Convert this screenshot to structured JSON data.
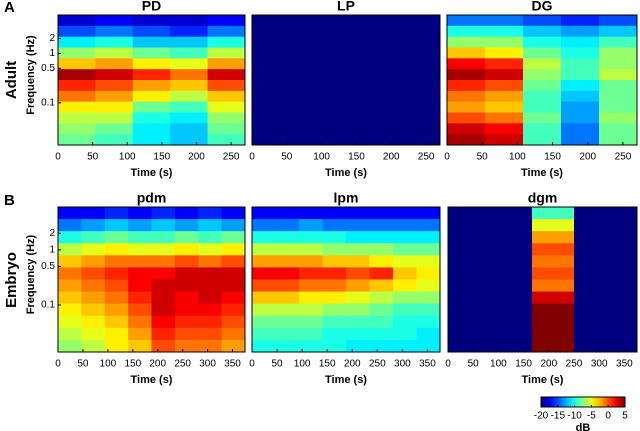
{
  "row_labels": [
    {
      "letter": "A",
      "name": "Adult"
    },
    {
      "letter": "B",
      "name": "Embryo"
    }
  ],
  "colorbar": {
    "clim": [
      -20,
      5
    ],
    "ticks": [
      -20,
      -15,
      -10,
      -5,
      0,
      5
    ],
    "label": "dB"
  },
  "chart_data": [
    {
      "type": "heatmap",
      "title": "PD",
      "xlabel": "Time (s)",
      "ylabel": "Frequency (Hz)",
      "xlim": [
        0,
        270
      ],
      "xticks": [
        0,
        50,
        100,
        150,
        200,
        250
      ],
      "ylog": true,
      "ylim": [
        0.014,
        6
      ],
      "yticks": [
        0.1,
        0.5,
        1,
        2
      ],
      "values": [
        [
          -18,
          -17,
          -18,
          -18,
          -17
        ],
        [
          -15,
          -14,
          -15,
          -16,
          -14
        ],
        [
          -11,
          -10,
          -12,
          -12,
          -10
        ],
        [
          -7,
          -6,
          -8,
          -9,
          -6
        ],
        [
          -3,
          -2,
          -4,
          -5,
          -2
        ],
        [
          4,
          3,
          1,
          -1,
          3
        ],
        [
          1,
          0,
          -2,
          -3,
          0
        ],
        [
          -1,
          -2,
          -4,
          -6,
          -3
        ],
        [
          -4,
          -4,
          -8,
          -9,
          -5
        ],
        [
          -6,
          -6,
          -10,
          -11,
          -7
        ],
        [
          -7,
          -8,
          -11,
          -12,
          -8
        ],
        [
          -8,
          -9,
          -11,
          -12,
          -9
        ]
      ]
    },
    {
      "type": "heatmap",
      "title": "LP",
      "xlabel": "Time (s)",
      "xlim": [
        0,
        270
      ],
      "xticks": [
        0,
        50,
        100,
        150,
        200,
        250
      ],
      "values": [
        [
          -20
        ]
      ]
    },
    {
      "type": "heatmap",
      "title": "DG",
      "xlabel": "Time (s)",
      "xlim": [
        0,
        270
      ],
      "xticks": [
        0,
        50,
        100,
        150,
        200,
        250
      ],
      "values": [
        [
          -14,
          -14,
          -15,
          -16,
          -15
        ],
        [
          -10,
          -10,
          -12,
          -13,
          -12
        ],
        [
          -7,
          -7,
          -10,
          -11,
          -9
        ],
        [
          -3,
          -4,
          -8,
          -10,
          -7
        ],
        [
          2,
          1,
          -6,
          -9,
          -7
        ],
        [
          4,
          3,
          -7,
          -9,
          -6
        ],
        [
          1,
          0,
          -8,
          -11,
          -8
        ],
        [
          -1,
          -2,
          -9,
          -12,
          -8
        ],
        [
          -2,
          -3,
          -9,
          -13,
          -8
        ],
        [
          0,
          -1,
          -8,
          -13,
          -7
        ],
        [
          3,
          2,
          -9,
          -14,
          -8
        ],
        [
          4,
          3,
          -9,
          -14,
          -8
        ]
      ]
    },
    {
      "type": "heatmap",
      "title": "pdm",
      "xlabel": "Time (s)",
      "ylabel": "Frequency (Hz)",
      "xlim": [
        0,
        375
      ],
      "xticks": [
        0,
        50,
        100,
        150,
        200,
        250,
        300,
        350
      ],
      "ylog": true,
      "ylim": [
        0.014,
        6
      ],
      "yticks": [
        0.1,
        0.5,
        1,
        2
      ],
      "values": [
        [
          -17,
          -17,
          -16,
          -17,
          -16,
          -17,
          -16,
          -17
        ],
        [
          -14,
          -13,
          -12,
          -13,
          -12,
          -13,
          -12,
          -13
        ],
        [
          -10,
          -9,
          -8,
          -9,
          -9,
          -8,
          -9,
          -8
        ],
        [
          -6,
          -5,
          -4,
          -5,
          -5,
          -4,
          -5,
          -4
        ],
        [
          -3,
          -2,
          -1,
          -1,
          -1,
          0,
          -1,
          0
        ],
        [
          -1,
          0,
          1,
          2,
          2,
          3,
          3,
          3
        ],
        [
          -2,
          -1,
          0,
          2,
          3,
          3,
          3,
          3
        ],
        [
          -3,
          -2,
          -1,
          1,
          3,
          2,
          3,
          2
        ],
        [
          -4,
          -3,
          -2,
          0,
          3,
          2,
          2,
          1
        ],
        [
          -5,
          -4,
          -3,
          -1,
          2,
          1,
          1,
          0
        ],
        [
          -6,
          -5,
          -4,
          -2,
          1,
          0,
          0,
          -1
        ],
        [
          -7,
          -6,
          -4,
          -3,
          0,
          -1,
          -1,
          -2
        ]
      ]
    },
    {
      "type": "heatmap",
      "title": "lpm",
      "xlabel": "Time (s)",
      "xlim": [
        0,
        375
      ],
      "xticks": [
        0,
        50,
        100,
        150,
        200,
        250,
        300,
        350
      ],
      "values": [
        [
          -17,
          -17,
          -17,
          -17,
          -17,
          -17,
          -17,
          -17
        ],
        [
          -14,
          -14,
          -13,
          -14,
          -14,
          -14,
          -14,
          -14
        ],
        [
          -10,
          -10,
          -10,
          -10,
          -11,
          -11,
          -11,
          -11
        ],
        [
          -6,
          -6,
          -6,
          -7,
          -7,
          -7,
          -8,
          -8
        ],
        [
          -2,
          -2,
          -2,
          -3,
          -3,
          -4,
          -5,
          -5
        ],
        [
          2,
          2,
          1,
          1,
          0,
          1,
          -3,
          -4
        ],
        [
          0,
          0,
          -1,
          -1,
          -2,
          -3,
          -4,
          -5
        ],
        [
          -3,
          -3,
          -4,
          -4,
          -5,
          -6,
          -7,
          -7
        ],
        [
          -6,
          -6,
          -6,
          -7,
          -7,
          -8,
          -9,
          -9
        ],
        [
          -8,
          -8,
          -8,
          -9,
          -9,
          -9,
          -10,
          -10
        ],
        [
          -9,
          -9,
          -9,
          -10,
          -10,
          -10,
          -10,
          -11
        ],
        [
          -10,
          -10,
          -10,
          -10,
          -11,
          -11,
          -11,
          -11
        ]
      ]
    },
    {
      "type": "heatmap",
      "title": "dgm",
      "xlabel": "Time (s)",
      "xlim": [
        0,
        375
      ],
      "xticks": [
        0,
        50,
        100,
        150,
        200,
        250,
        300,
        350
      ],
      "values": [
        [
          -20,
          -20,
          -20,
          -20,
          -9,
          -9,
          -20,
          -20,
          -20
        ],
        [
          -20,
          -20,
          -20,
          -20,
          -5,
          -5,
          -20,
          -20,
          -20
        ],
        [
          -20,
          -20,
          -20,
          -20,
          -2,
          -2,
          -20,
          -20,
          -20
        ],
        [
          -20,
          -20,
          -20,
          -20,
          0,
          0,
          -20,
          -20,
          -20
        ],
        [
          -20,
          -20,
          -20,
          -20,
          -1,
          -1,
          -20,
          -20,
          -20
        ],
        [
          -20,
          -20,
          -20,
          -20,
          0,
          0,
          -20,
          -20,
          -20
        ],
        [
          -20,
          -20,
          -20,
          -20,
          -1,
          -1,
          -20,
          -20,
          -20
        ],
        [
          -20,
          -20,
          -20,
          -20,
          3,
          3,
          -20,
          -20,
          -20
        ],
        [
          -20,
          -20,
          -20,
          -20,
          5,
          5,
          -20,
          -20,
          -20
        ],
        [
          -20,
          -20,
          -20,
          -20,
          5,
          5,
          -20,
          -20,
          -20
        ],
        [
          -20,
          -20,
          -20,
          -20,
          5,
          5,
          -20,
          -20,
          -20
        ],
        [
          -20,
          -20,
          -20,
          -20,
          5,
          5,
          -20,
          -20,
          -20
        ]
      ]
    }
  ]
}
